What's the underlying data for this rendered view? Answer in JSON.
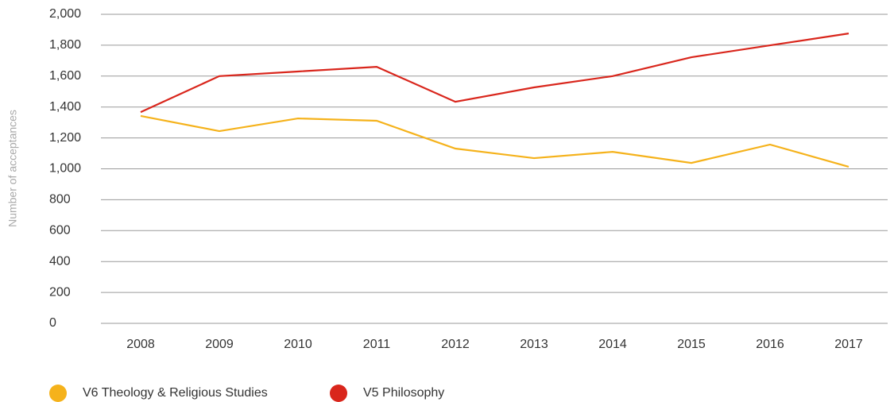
{
  "chart_data": {
    "type": "line",
    "y_label": "Number of acceptances",
    "categories": [
      "2008",
      "2009",
      "2010",
      "2011",
      "2012",
      "2013",
      "2014",
      "2015",
      "2016",
      "2017"
    ],
    "series": [
      {
        "name": "V6 Theology & Religious Studies",
        "color": "#f5b21b",
        "values": [
          1342,
          1244,
          1326,
          1311,
          1131,
          1069,
          1110,
          1038,
          1157,
          1013
        ]
      },
      {
        "name": "V5 Philosophy",
        "color": "#d9261c",
        "values": [
          1367,
          1600,
          1630,
          1660,
          1434,
          1527,
          1600,
          1722,
          1799,
          1876
        ]
      }
    ],
    "ylim": [
      0,
      2000
    ],
    "yticks": [
      0,
      200,
      400,
      600,
      800,
      {
        "value": 1000,
        "label": "1,000"
      },
      {
        "value": 1200,
        "label": "1,200"
      },
      {
        "value": 1400,
        "label": "1,400"
      },
      {
        "value": 1600,
        "label": "1,600"
      },
      {
        "value": 1800,
        "label": "1,800"
      },
      {
        "value": 2000,
        "label": "2,000"
      }
    ],
    "grid": true
  }
}
